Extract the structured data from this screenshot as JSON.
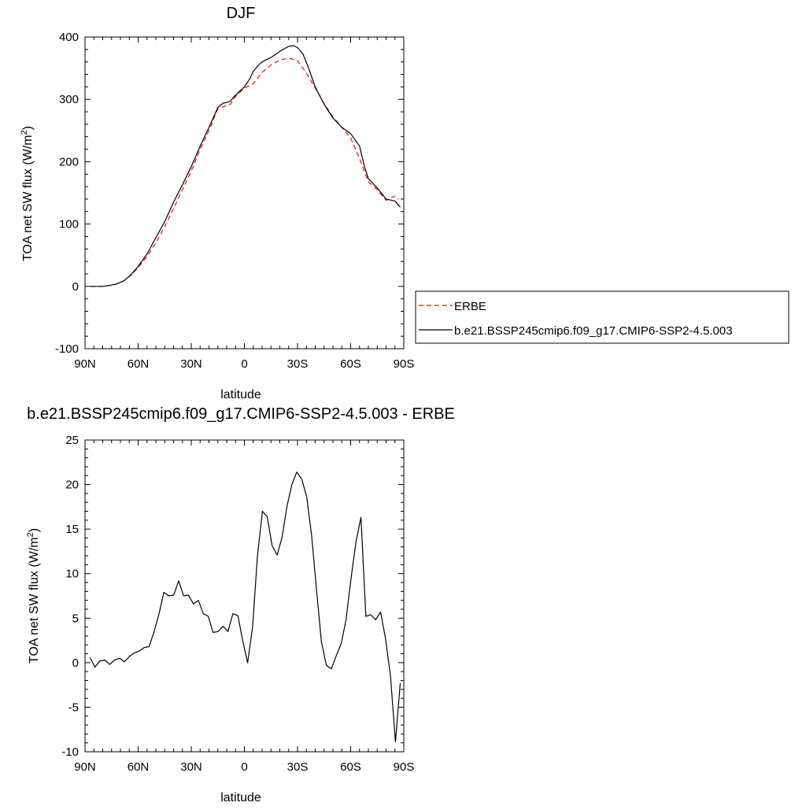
{
  "chart_data": [
    {
      "type": "line",
      "title": "DJF",
      "xlabel": "latitude",
      "ylabel": "TOA net SW flux (W/m",
      "ylabel_sup": "2",
      "ylabel_end": ")",
      "xlim": [
        90,
        -90
      ],
      "ylim": [
        -100,
        400
      ],
      "xticks": [
        90,
        60,
        30,
        0,
        -30,
        -60,
        -90
      ],
      "xtick_labels": [
        "90N",
        "60N",
        "30N",
        "0",
        "30S",
        "60S",
        "90S"
      ],
      "yticks": [
        400,
        300,
        200,
        100,
        0,
        -100
      ],
      "ytick_labels": [
        "400",
        "300",
        "200",
        "100",
        "0",
        "-100"
      ],
      "legend_position": "right",
      "grid": false,
      "series": [
        {
          "name": "ERBE",
          "color": "#ff0000",
          "dash": "dashed",
          "x": [
            87,
            84,
            80,
            75,
            72,
            68,
            64,
            60,
            55,
            50,
            45,
            40,
            35,
            30,
            25,
            20,
            15,
            10,
            8,
            5,
            0,
            -5,
            -10,
            -15,
            -20,
            -25,
            -30,
            -35,
            -40,
            -45,
            -50,
            -55,
            -60,
            -65,
            -70,
            -75,
            -80,
            -85,
            -87
          ],
          "y": [
            0,
            0,
            0,
            2,
            4,
            9,
            18,
            30,
            48,
            70,
            96,
            125,
            155,
            185,
            220,
            250,
            285,
            290,
            292,
            305,
            318,
            325,
            343,
            355,
            363,
            366,
            362,
            342,
            318,
            293,
            272,
            255,
            238,
            205,
            168,
            155,
            138,
            145,
            140
          ]
        },
        {
          "name": "b.e21.BSSP245cmip6.f09_g17.CMIP6-SSP2-4.5.003",
          "color": "#000000",
          "dash": "solid",
          "x": [
            87,
            84,
            80,
            75,
            72,
            68,
            64,
            60,
            55,
            50,
            45,
            40,
            35,
            30,
            25,
            20,
            15,
            12,
            10,
            8,
            5,
            0,
            -3,
            -5,
            -8,
            -10,
            -12,
            -15,
            -20,
            -25,
            -28,
            -30,
            -33,
            -36,
            -40,
            -45,
            -50,
            -55,
            -60,
            -65,
            -68,
            -70,
            -75,
            -80,
            -85,
            -88
          ],
          "y": [
            0,
            0,
            0,
            2,
            4,
            9,
            19,
            32,
            52,
            78,
            104,
            135,
            163,
            192,
            225,
            255,
            287,
            294,
            295,
            297,
            307,
            320,
            333,
            345,
            355,
            360,
            363,
            367,
            377,
            385,
            386,
            383,
            373,
            352,
            320,
            292,
            270,
            255,
            245,
            225,
            190,
            173,
            158,
            140,
            137,
            127
          ]
        }
      ]
    },
    {
      "type": "line",
      "title": "b.e21.BSSP245cmip6.f09_g17.CMIP6-SSP2-4.5.003 - ERBE",
      "xlabel": "latitude",
      "ylabel": "TOA net SW flux (W/m",
      "ylabel_sup": "2",
      "ylabel_end": ")",
      "xlim": [
        90,
        -90
      ],
      "ylim": [
        -10,
        25
      ],
      "xticks": [
        90,
        60,
        30,
        0,
        -30,
        -60,
        -90
      ],
      "xtick_labels": [
        "90N",
        "60N",
        "30N",
        "0",
        "30S",
        "60S",
        "90S"
      ],
      "yticks": [
        25,
        20,
        15,
        10,
        5,
        0,
        -5,
        -10
      ],
      "ytick_labels": [
        "25",
        "20",
        "15",
        "10",
        "5",
        "0",
        "-5",
        "-10"
      ],
      "grid": false,
      "series": [
        {
          "color": "#000000",
          "dash": "solid",
          "x": [
            87.2,
            84.4,
            81.6,
            78.8,
            76.1,
            73.3,
            70.5,
            67.7,
            64.9,
            62.2,
            59.4,
            56.6,
            53.8,
            51.0,
            48.2,
            45.5,
            42.7,
            39.9,
            37.1,
            34.3,
            31.6,
            28.8,
            26.0,
            23.2,
            20.4,
            17.7,
            14.9,
            12.1,
            9.3,
            6.5,
            3.7,
            1.0,
            -1.8,
            -4.6,
            -7.4,
            -10.2,
            -12.9,
            -15.7,
            -18.5,
            -21.3,
            -24.1,
            -26.8,
            -29.6,
            -32.4,
            -35.2,
            -38.0,
            -40.8,
            -43.5,
            -46.3,
            -49.1,
            -51.9,
            -54.7,
            -57.4,
            -60.2,
            -63.0,
            -65.8,
            -68.6,
            -71.3,
            -74.1,
            -76.9,
            -79.7,
            -82.5,
            -85.3,
            -88.0
          ],
          "y": [
            0.6,
            -0.5,
            0.2,
            0.3,
            -0.2,
            0.3,
            0.5,
            0.1,
            0.7,
            1.1,
            1.3,
            1.7,
            1.8,
            3.5,
            5.5,
            7.9,
            7.5,
            7.6,
            9.2,
            7.5,
            7.6,
            6.6,
            7.0,
            5.5,
            5.2,
            3.4,
            3.5,
            4.1,
            3.5,
            5.5,
            5.3,
            2.5,
            0.0,
            4.0,
            12.0,
            17.0,
            16.4,
            13.1,
            12.1,
            14.1,
            17.6,
            20.0,
            21.4,
            20.6,
            18.6,
            14.2,
            8.0,
            2.3,
            -0.3,
            -0.7,
            0.8,
            2.2,
            4.8,
            9.4,
            13.6,
            16.3,
            5.2,
            5.4,
            4.8,
            5.7,
            2.7,
            -1.5,
            -8.9,
            -2.3
          ]
        }
      ]
    }
  ]
}
